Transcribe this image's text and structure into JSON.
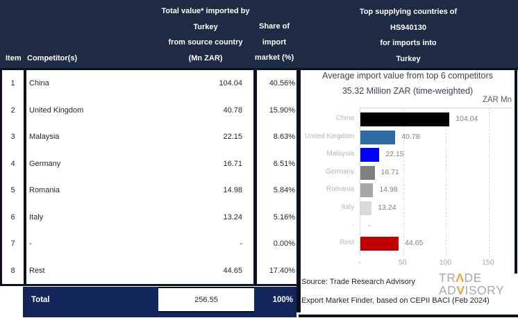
{
  "header": {
    "col_item": "Item",
    "col_competitor": "Competitor(s)",
    "col_value_lines": [
      "Total value* imported by",
      "Turkey",
      "from source country",
      "(Mn ZAR)"
    ],
    "col_share_lines": [
      "Share of",
      "import",
      "market (%)"
    ],
    "right_title_lines": [
      "Top supplying countries of",
      "HS940130",
      "for imports into",
      "Turkey"
    ]
  },
  "table": {
    "rows": [
      {
        "item": "1",
        "competitor": "China",
        "value": "104.04",
        "share": "40.56%"
      },
      {
        "item": "2",
        "competitor": "United Kingdom",
        "value": "40.78",
        "share": "15.90%"
      },
      {
        "item": "3",
        "competitor": "Malaysia",
        "value": "22.15",
        "share": "8.63%"
      },
      {
        "item": "4",
        "competitor": "Germany",
        "value": "16.71",
        "share": "6.51%"
      },
      {
        "item": "5",
        "competitor": "Romania",
        "value": "14.98",
        "share": "5.84%"
      },
      {
        "item": "6",
        "competitor": "Italy",
        "value": "13.24",
        "share": "5.16%"
      },
      {
        "item": "7",
        "competitor": "-",
        "value": "-",
        "share": "0.00%"
      },
      {
        "item": "8",
        "competitor": "Rest",
        "value": "44.65",
        "share": "17.40%"
      }
    ],
    "total": {
      "label": "Total",
      "value": "256.55",
      "share": "100%"
    }
  },
  "chart_data": {
    "type": "bar",
    "orientation": "horizontal",
    "title": "Average import value from top 6 competitors",
    "subtitle": "35.32 Million ZAR (time-weighted)",
    "unit_label": "ZAR Mn",
    "categories": [
      "China",
      "United Kingdom",
      "Malaysia",
      "Germany",
      "Romania",
      "Italy",
      "-",
      "Rest"
    ],
    "values": [
      104.04,
      40.78,
      22.15,
      16.71,
      14.98,
      13.24,
      null,
      44.65
    ],
    "value_labels": [
      "104.04",
      "40.78",
      "22.15",
      "16.71",
      "14.98",
      "13.24",
      "-",
      "44.65"
    ],
    "bar_colors": [
      "#000000",
      "#2d6ca3",
      "#0000fe",
      "#7f7f7f",
      "#a6a6a6",
      "#d9d9d9",
      null,
      "#c00000"
    ],
    "x_ticks": [
      {
        "label": "-",
        "value": 0
      },
      {
        "label": "50",
        "value": 50
      },
      {
        "label": "100",
        "value": 100
      },
      {
        "label": "150",
        "value": 150
      }
    ],
    "xlim": [
      0,
      178
    ],
    "grid": "vertical-dashed",
    "legend": "none"
  },
  "footer": {
    "source_line1": "Source: Trade Research Advisory",
    "source_line2": "Export Market Finder, based on CEPII BACI (Feb 2024)",
    "logo": {
      "t1": "TR",
      "t2": "Λ",
      "t3": "DE",
      "b1": "AD",
      "b2": "V",
      "b3": "ISORY"
    }
  },
  "colors": {
    "header_navy": "#1f2a44",
    "total_navy": "#13265c",
    "rule_black": "#0c1120",
    "chart_title": "#3c4257",
    "cat_label": "#b5b5b5",
    "value_label": "#808080",
    "tick_label": "#a6a6a6",
    "gridline": "#d9d9d9",
    "logo_gray": "#a9a9a9",
    "logo_orange": "#f2a33c",
    "body_text": "#26262e"
  }
}
